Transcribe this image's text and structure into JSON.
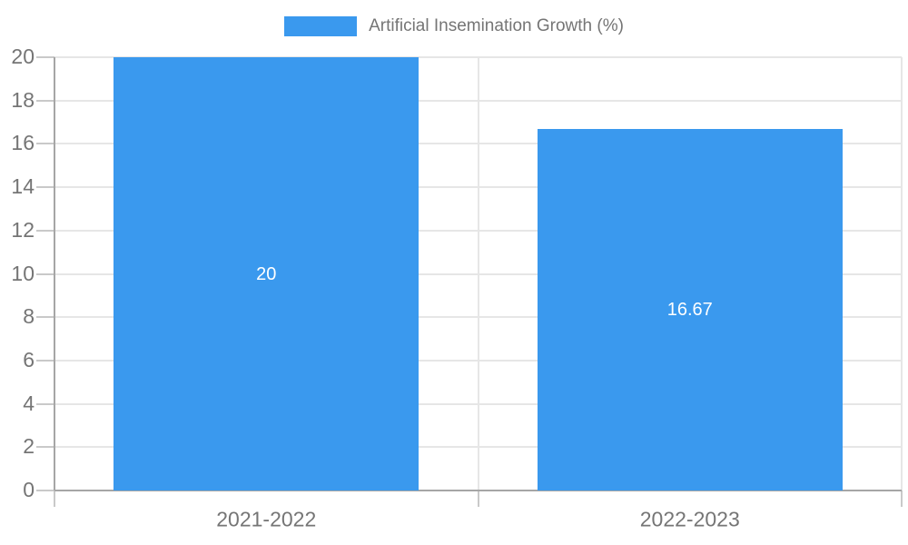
{
  "legend": {
    "label": "Artificial Insemination Growth (%)"
  },
  "colors": {
    "bar": "#3A99EE",
    "grid": "#E6E6E6",
    "axis": "#A6A6A6",
    "tick": "#C9C9C9",
    "tick_text": "#757575",
    "data_label_text": "#FFFFFF",
    "background": "#FFFFFF"
  },
  "chart_data": {
    "type": "bar",
    "title": "",
    "categories": [
      "2021-2022",
      "2022-2023"
    ],
    "series": [
      {
        "name": "Artificial Insemination Growth (%)",
        "values": [
          20,
          16.67
        ]
      }
    ],
    "data_labels": [
      "20",
      "16.67"
    ],
    "xlabel": "",
    "ylabel": "",
    "ylim": [
      0,
      20
    ],
    "yticks": [
      0,
      2,
      4,
      6,
      8,
      10,
      12,
      14,
      16,
      18,
      20
    ],
    "grid": true,
    "legend_position": "top-center",
    "bar_label_position": "center"
  }
}
